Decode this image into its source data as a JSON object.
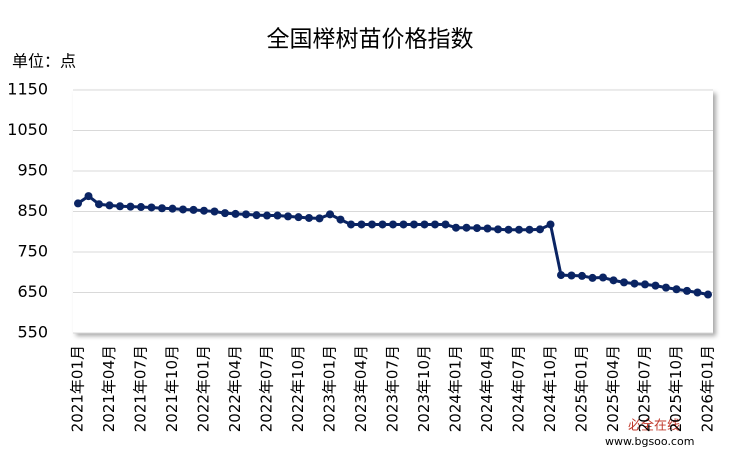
{
  "chart_data": {
    "type": "line",
    "title": "全国榉树苗价格指数",
    "unit_label": "单位：点",
    "categories": [
      "2021年01月",
      null,
      null,
      "2021年04月",
      null,
      null,
      "2021年07月",
      null,
      null,
      "2021年10月",
      null,
      null,
      "2022年01月",
      null,
      null,
      "2022年04月",
      null,
      null,
      "2022年07月",
      null,
      null,
      "2022年10月",
      null,
      null,
      "2023年01月",
      null,
      null,
      "2023年04月",
      null,
      null,
      "2023年07月",
      null,
      null,
      "2023年10月",
      null,
      null,
      "2024年01月",
      null,
      null,
      "2024年04月",
      null,
      null,
      "2024年07月",
      null,
      null,
      "2024年10月",
      null,
      null,
      "2025年01月",
      null,
      null,
      "2025年04月",
      null,
      null,
      "2025年07月",
      null,
      null,
      "2025年10月",
      null,
      null,
      "2026年01月"
    ],
    "values": [
      870,
      888,
      868,
      865,
      863,
      862,
      861,
      860,
      858,
      857,
      855,
      854,
      852,
      850,
      846,
      844,
      843,
      841,
      840,
      840,
      838,
      836,
      834,
      833,
      843,
      830,
      818,
      818,
      818,
      818,
      818,
      818,
      818,
      818,
      818,
      818,
      810,
      810,
      809,
      808,
      806,
      805,
      805,
      805,
      806,
      818,
      693,
      692,
      691,
      686,
      687,
      680,
      675,
      672,
      670,
      667,
      662,
      658,
      654,
      650,
      645
    ],
    "color": "#0a2463",
    "ylim": [
      550,
      1150
    ],
    "yticks": [
      550,
      650,
      750,
      850,
      950,
      1050,
      1150
    ],
    "grid": true,
    "watermark": [
      "必全在线",
      "www.bgsoo.com"
    ]
  }
}
